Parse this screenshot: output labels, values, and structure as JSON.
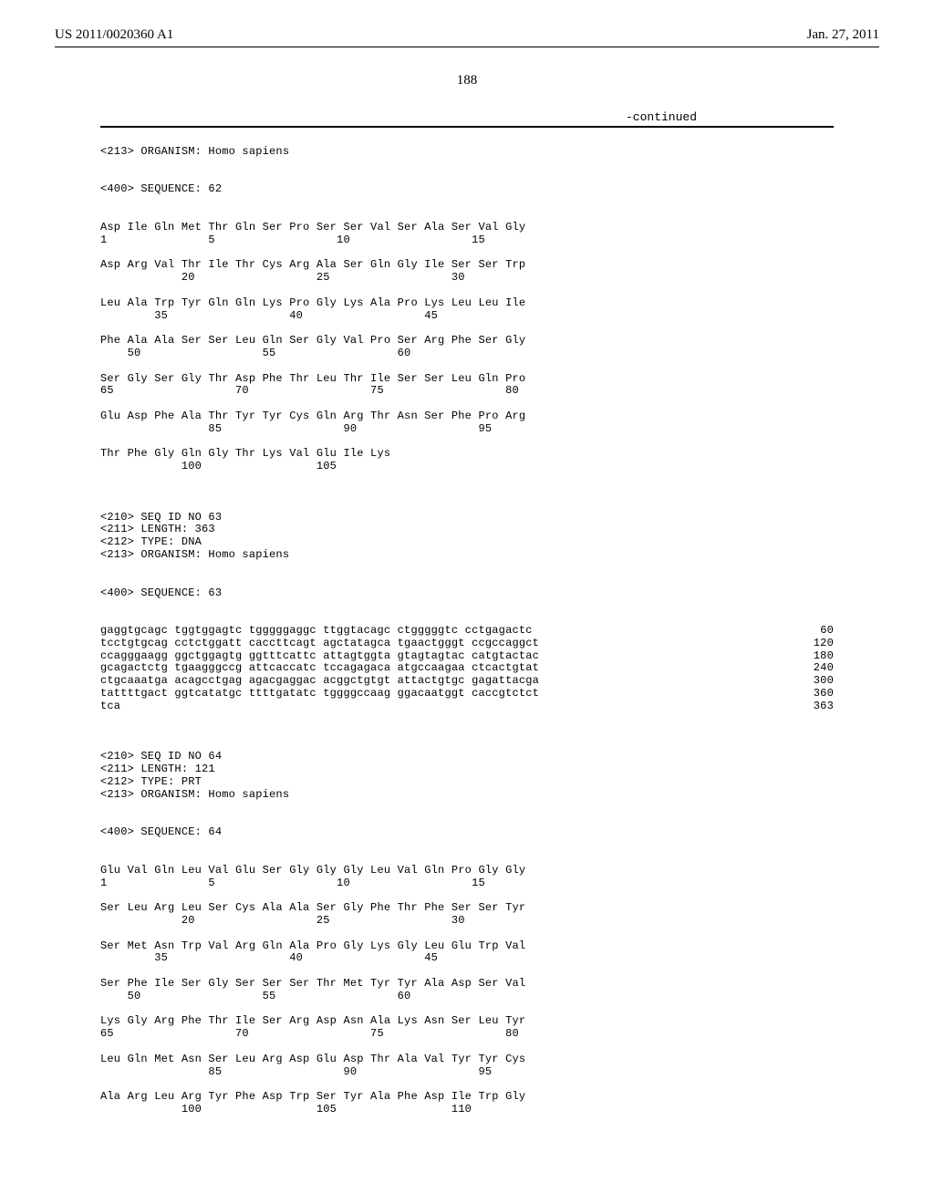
{
  "header": {
    "pub_number": "US 2011/0020360 A1",
    "pub_date": "Jan. 27, 2011"
  },
  "page_number": "188",
  "continued_label": "-continued",
  "organism_213": "<213> ORGANISM: Homo sapiens",
  "seq62": {
    "tag400": "<400> SEQUENCE: 62",
    "rows": [
      "Asp Ile Gln Met Thr Gln Ser Pro Ser Ser Val Ser Ala Ser Val Gly",
      "1               5                  10                  15",
      "",
      "Asp Arg Val Thr Ile Thr Cys Arg Ala Ser Gln Gly Ile Ser Ser Trp",
      "            20                  25                  30",
      "",
      "Leu Ala Trp Tyr Gln Gln Lys Pro Gly Lys Ala Pro Lys Leu Leu Ile",
      "        35                  40                  45",
      "",
      "Phe Ala Ala Ser Ser Leu Gln Ser Gly Val Pro Ser Arg Phe Ser Gly",
      "    50                  55                  60",
      "",
      "Ser Gly Ser Gly Thr Asp Phe Thr Leu Thr Ile Ser Ser Leu Gln Pro",
      "65                  70                  75                  80",
      "",
      "Glu Asp Phe Ala Thr Tyr Tyr Cys Gln Arg Thr Asn Ser Phe Pro Arg",
      "                85                  90                  95",
      "",
      "Thr Phe Gly Gln Gly Thr Lys Val Glu Ile Lys",
      "            100                 105"
    ]
  },
  "seq63_meta": {
    "l210": "<210> SEQ ID NO 63",
    "l211": "<211> LENGTH: 363",
    "l212": "<212> TYPE: DNA",
    "l213": "<213> ORGANISM: Homo sapiens",
    "l400": "<400> SEQUENCE: 63"
  },
  "seq63_dna": [
    {
      "seq": "gaggtgcagc tggtggagtc tgggggaggc ttggtacagc ctgggggtc cctgagactc",
      "n": "60"
    },
    {
      "seq": "tcctgtgcag cctctggatt caccttcagt agctatagca tgaactgggt ccgccaggct",
      "n": "120"
    },
    {
      "seq": "ccagggaagg ggctggagtg ggtttcattc attagtggta gtagtagtac catgtactac",
      "n": "180"
    },
    {
      "seq": "gcagactctg tgaagggccg attcaccatc tccagagaca atgccaagaa ctcactgtat",
      "n": "240"
    },
    {
      "seq": "ctgcaaatga acagcctgag agacgaggac acggctgtgt attactgtgc gagattacga",
      "n": "300"
    },
    {
      "seq": "tattttgact ggtcatatgc ttttgatatc tggggccaag ggacaatggt caccgtctct",
      "n": "360"
    },
    {
      "seq": "tca",
      "n": "363"
    }
  ],
  "seq64_meta": {
    "l210": "<210> SEQ ID NO 64",
    "l211": "<211> LENGTH: 121",
    "l212": "<212> TYPE: PRT",
    "l213": "<213> ORGANISM: Homo sapiens",
    "l400": "<400> SEQUENCE: 64"
  },
  "seq64": {
    "rows": [
      "Glu Val Gln Leu Val Glu Ser Gly Gly Gly Leu Val Gln Pro Gly Gly",
      "1               5                  10                  15",
      "",
      "Ser Leu Arg Leu Ser Cys Ala Ala Ser Gly Phe Thr Phe Ser Ser Tyr",
      "            20                  25                  30",
      "",
      "Ser Met Asn Trp Val Arg Gln Ala Pro Gly Lys Gly Leu Glu Trp Val",
      "        35                  40                  45",
      "",
      "Ser Phe Ile Ser Gly Ser Ser Ser Thr Met Tyr Tyr Ala Asp Ser Val",
      "    50                  55                  60",
      "",
      "Lys Gly Arg Phe Thr Ile Ser Arg Asp Asn Ala Lys Asn Ser Leu Tyr",
      "65                  70                  75                  80",
      "",
      "Leu Gln Met Asn Ser Leu Arg Asp Glu Asp Thr Ala Val Tyr Tyr Cys",
      "                85                  90                  95",
      "",
      "Ala Arg Leu Arg Tyr Phe Asp Trp Ser Tyr Ala Phe Asp Ile Trp Gly",
      "            100                 105                 110"
    ]
  }
}
